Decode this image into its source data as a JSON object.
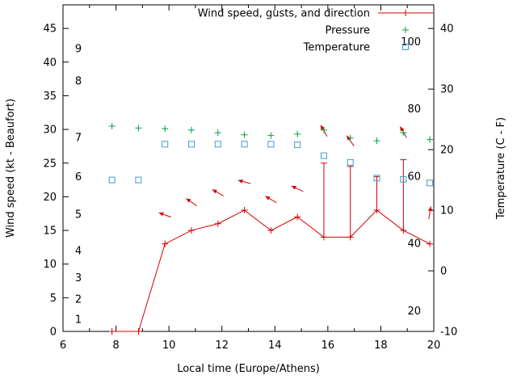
{
  "chart_data": {
    "type": "line",
    "xlabel": "Local time (Europe/Athens)",
    "ylabel_left": "Wind speed (kt - Beaufort)",
    "ylabel_right": "Temperature (C - F)",
    "legend": [
      {
        "label": "Wind speed, gusts, and direction",
        "style": "line-plus",
        "color": "#d40000"
      },
      {
        "label": "Pressure",
        "style": "plus",
        "color": "#00a040"
      },
      {
        "label": "Temperature",
        "style": "square",
        "color": "#3d9ccc"
      }
    ],
    "x": [
      7.85,
      8.85,
      9.85,
      10.85,
      11.85,
      12.85,
      13.85,
      14.85,
      15.85,
      16.85,
      17.85,
      18.85,
      19.85
    ],
    "wind_speed_kt": [
      0,
      0,
      13,
      15,
      16,
      18,
      15,
      17,
      14,
      14,
      18,
      15,
      13
    ],
    "gust_top_kt": [
      null,
      null,
      null,
      null,
      null,
      null,
      null,
      null,
      25,
      24.5,
      23,
      25.5,
      null
    ],
    "pressure_plot_kt_axis": [
      30.5,
      30.2,
      30.1,
      29.9,
      29.5,
      29.2,
      29.1,
      29.3,
      29.9,
      28.7,
      28.3,
      29.5,
      28.5
    ],
    "temperature_C": [
      15,
      15,
      20.9,
      20.9,
      20.9,
      20.9,
      20.9,
      20.8,
      19,
      17.9,
      15.3,
      15.1,
      14.5
    ],
    "wind_direction_arrows": [
      {
        "x": 9.85,
        "y_kt": 17.3,
        "angle_deg": 160
      },
      {
        "x": 10.85,
        "y_kt": 19.2,
        "angle_deg": 145
      },
      {
        "x": 11.85,
        "y_kt": 20.6,
        "angle_deg": 150
      },
      {
        "x": 12.85,
        "y_kt": 22.2,
        "angle_deg": 165
      },
      {
        "x": 13.85,
        "y_kt": 19.6,
        "angle_deg": 150
      },
      {
        "x": 14.85,
        "y_kt": 21.2,
        "angle_deg": 155
      },
      {
        "x": 15.85,
        "y_kt": 29.8,
        "angle_deg": 120
      },
      {
        "x": 16.85,
        "y_kt": 28.3,
        "angle_deg": 125
      },
      {
        "x": 18.85,
        "y_kt": 29.6,
        "angle_deg": 120
      },
      {
        "x": 19.85,
        "y_kt": 17.6,
        "angle_deg": 80
      }
    ],
    "axes": {
      "x": {
        "min": 6,
        "max": 20,
        "major_ticks": [
          6,
          8,
          10,
          12,
          14,
          16,
          18,
          20
        ],
        "minor_step": 1
      },
      "y_left_kt": {
        "min": 0,
        "max": 48.5,
        "major_ticks": [
          0,
          5,
          10,
          15,
          20,
          25,
          30,
          35,
          40,
          45
        ]
      },
      "y_right_C": {
        "min": -10,
        "max": 43.9,
        "major_ticks": [
          -10,
          0,
          10,
          20,
          30,
          40
        ]
      },
      "beaufort_labels": [
        {
          "label": "1",
          "kt": 1.8
        },
        {
          "label": "2",
          "kt": 4.8
        },
        {
          "label": "3",
          "kt": 8
        },
        {
          "label": "4",
          "kt": 12
        },
        {
          "label": "5",
          "kt": 17.4
        },
        {
          "label": "6",
          "kt": 23
        },
        {
          "label": "7",
          "kt": 28.8
        },
        {
          "label": "8",
          "kt": 37.2
        },
        {
          "label": "9",
          "kt": 42
        }
      ],
      "fahrenheit_labels": [
        20,
        40,
        60,
        80,
        100
      ]
    },
    "colors": {
      "wind": "#d40000",
      "pressure": "#00a040",
      "temperature": "#3d9ccc",
      "axis": "#000000",
      "background": "#ffffff"
    }
  }
}
